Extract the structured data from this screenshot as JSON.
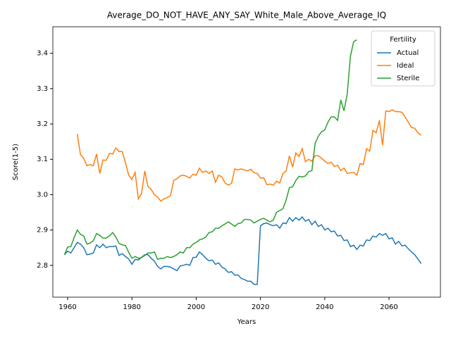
{
  "chart_data": {
    "type": "line",
    "title": "Average_DO_NOT_HAVE_ANY_SAY_White_Male_Above_Average_IQ",
    "x_label": "Years",
    "y_label": "Score(1-5)",
    "legend_title": "Fertility",
    "legend": "upper right",
    "grid": false,
    "xlim": [
      1955.4,
      2076
    ],
    "ylim": [
      2.71,
      3.475
    ],
    "xticks": [
      1960,
      1980,
      2000,
      2020,
      2040,
      2060
    ],
    "yticks": [
      2.8,
      2.9,
      {
        "value": 3,
        "label": "3.0"
      },
      3.1,
      3.2,
      3.3,
      3.4
    ],
    "x": [
      1959,
      1960,
      1961,
      1962,
      1963,
      1964,
      1965,
      1966,
      1967,
      1968,
      1969,
      1970,
      1971,
      1972,
      1973,
      1974,
      1975,
      1976,
      1977,
      1978,
      1979,
      1980,
      1981,
      1982,
      1983,
      1984,
      1985,
      1986,
      1987,
      1988,
      1989,
      1990,
      1991,
      1992,
      1993,
      1994,
      1995,
      1996,
      1997,
      1998,
      1999,
      2000,
      2001,
      2002,
      2003,
      2004,
      2005,
      2006,
      2007,
      2008,
      2009,
      2010,
      2011,
      2012,
      2013,
      2014,
      2015,
      2016,
      2017,
      2018,
      2019,
      2020,
      2021,
      2022,
      2023,
      2024,
      2025,
      2026,
      2027,
      2028,
      2029,
      2030,
      2031,
      2032,
      2033,
      2034,
      2035,
      2036,
      2037,
      2038,
      2039,
      2040,
      2041,
      2042,
      2043,
      2044,
      2045,
      2046,
      2047,
      2048,
      2049,
      2050,
      2051,
      2052,
      2053,
      2054,
      2055,
      2056,
      2057,
      2058,
      2059,
      2060,
      2061,
      2062,
      2063,
      2064,
      2065,
      2066,
      2067,
      2068,
      2069,
      2070
    ],
    "series": [
      {
        "name": "Actual",
        "color": "#1f77b4",
        "values": [
          2.83,
          2.84,
          2.835,
          2.85,
          2.865,
          2.86,
          2.85,
          2.83,
          2.832,
          2.835,
          2.858,
          2.85,
          2.86,
          2.85,
          2.853,
          2.853,
          2.855,
          2.828,
          2.833,
          2.825,
          2.818,
          2.803,
          2.817,
          2.815,
          2.823,
          2.83,
          2.83,
          2.82,
          2.812,
          2.797,
          2.79,
          2.797,
          2.797,
          2.795,
          2.79,
          2.785,
          2.798,
          2.8,
          2.803,
          2.8,
          2.822,
          2.823,
          2.838,
          2.83,
          2.82,
          2.813,
          2.815,
          2.803,
          2.807,
          2.795,
          2.79,
          2.78,
          2.782,
          2.772,
          2.773,
          2.763,
          2.76,
          2.755,
          2.755,
          2.746,
          2.746,
          2.912,
          2.918,
          2.92,
          2.915,
          2.912,
          2.915,
          2.905,
          2.92,
          2.918,
          2.935,
          2.925,
          2.935,
          2.928,
          2.937,
          2.925,
          2.93,
          2.915,
          2.925,
          2.91,
          2.915,
          2.9,
          2.905,
          2.895,
          2.897,
          2.883,
          2.885,
          2.87,
          2.872,
          2.853,
          2.857,
          2.845,
          2.857,
          2.855,
          2.872,
          2.87,
          2.883,
          2.88,
          2.89,
          2.885,
          2.89,
          2.875,
          2.878,
          2.86,
          2.868,
          2.855,
          2.857,
          2.847,
          2.838,
          2.83,
          2.818,
          2.805
        ]
      },
      {
        "name": "Ideal",
        "color": "#ff7f0e",
        "values": [
          null,
          null,
          null,
          null,
          3.172,
          3.113,
          3.103,
          3.082,
          3.085,
          3.082,
          3.115,
          3.06,
          3.098,
          3.097,
          3.117,
          3.115,
          3.132,
          3.122,
          3.122,
          3.09,
          3.055,
          3.043,
          3.063,
          2.988,
          3.003,
          3.067,
          3.023,
          3.015,
          3.0,
          2.993,
          2.982,
          2.988,
          2.992,
          2.997,
          3.04,
          3.045,
          3.053,
          3.055,
          3.052,
          3.047,
          3.058,
          3.055,
          3.075,
          3.063,
          3.067,
          3.06,
          3.067,
          3.035,
          3.055,
          3.05,
          3.033,
          3.027,
          3.032,
          3.073,
          3.07,
          3.073,
          3.07,
          3.067,
          3.072,
          3.062,
          3.06,
          3.047,
          3.048,
          3.028,
          3.03,
          3.027,
          3.038,
          3.033,
          3.06,
          3.067,
          3.11,
          3.078,
          3.118,
          3.108,
          3.13,
          3.093,
          3.1,
          3.095,
          3.11,
          3.11,
          3.103,
          3.095,
          3.088,
          3.092,
          3.08,
          3.083,
          3.068,
          3.075,
          3.06,
          3.062,
          3.063,
          3.055,
          3.088,
          3.085,
          3.13,
          3.123,
          3.182,
          3.175,
          3.21,
          3.14,
          3.237,
          3.235,
          3.24,
          3.235,
          3.235,
          3.233,
          3.22,
          3.205,
          3.19,
          3.188,
          3.175,
          3.168
        ]
      },
      {
        "name": "Sterile",
        "color": "#2ca02c",
        "values": [
          2.83,
          2.852,
          2.853,
          2.878,
          2.9,
          2.888,
          2.883,
          2.86,
          2.863,
          2.87,
          2.89,
          2.885,
          2.877,
          2.877,
          2.883,
          2.893,
          2.88,
          2.862,
          2.858,
          2.856,
          2.837,
          2.82,
          2.825,
          2.82,
          2.822,
          2.828,
          2.835,
          2.835,
          2.838,
          2.817,
          2.82,
          2.82,
          2.825,
          2.822,
          2.825,
          2.83,
          2.838,
          2.835,
          2.85,
          2.85,
          2.86,
          2.865,
          2.872,
          2.875,
          2.88,
          2.893,
          2.895,
          2.905,
          2.905,
          2.912,
          2.917,
          2.923,
          2.917,
          2.91,
          2.918,
          2.92,
          2.93,
          2.93,
          2.928,
          2.92,
          2.925,
          2.93,
          2.933,
          2.928,
          2.923,
          2.928,
          2.95,
          2.955,
          2.96,
          2.985,
          3.02,
          3.022,
          3.04,
          3.052,
          3.05,
          3.053,
          3.065,
          3.068,
          3.145,
          3.165,
          3.178,
          3.183,
          3.205,
          3.22,
          3.22,
          3.21,
          3.268,
          3.237,
          3.285,
          3.392,
          3.433,
          3.438,
          null,
          null,
          null,
          null,
          null,
          null,
          null,
          null,
          null,
          null,
          null,
          null,
          null,
          null,
          null,
          null,
          null,
          null,
          null,
          null
        ]
      }
    ]
  }
}
